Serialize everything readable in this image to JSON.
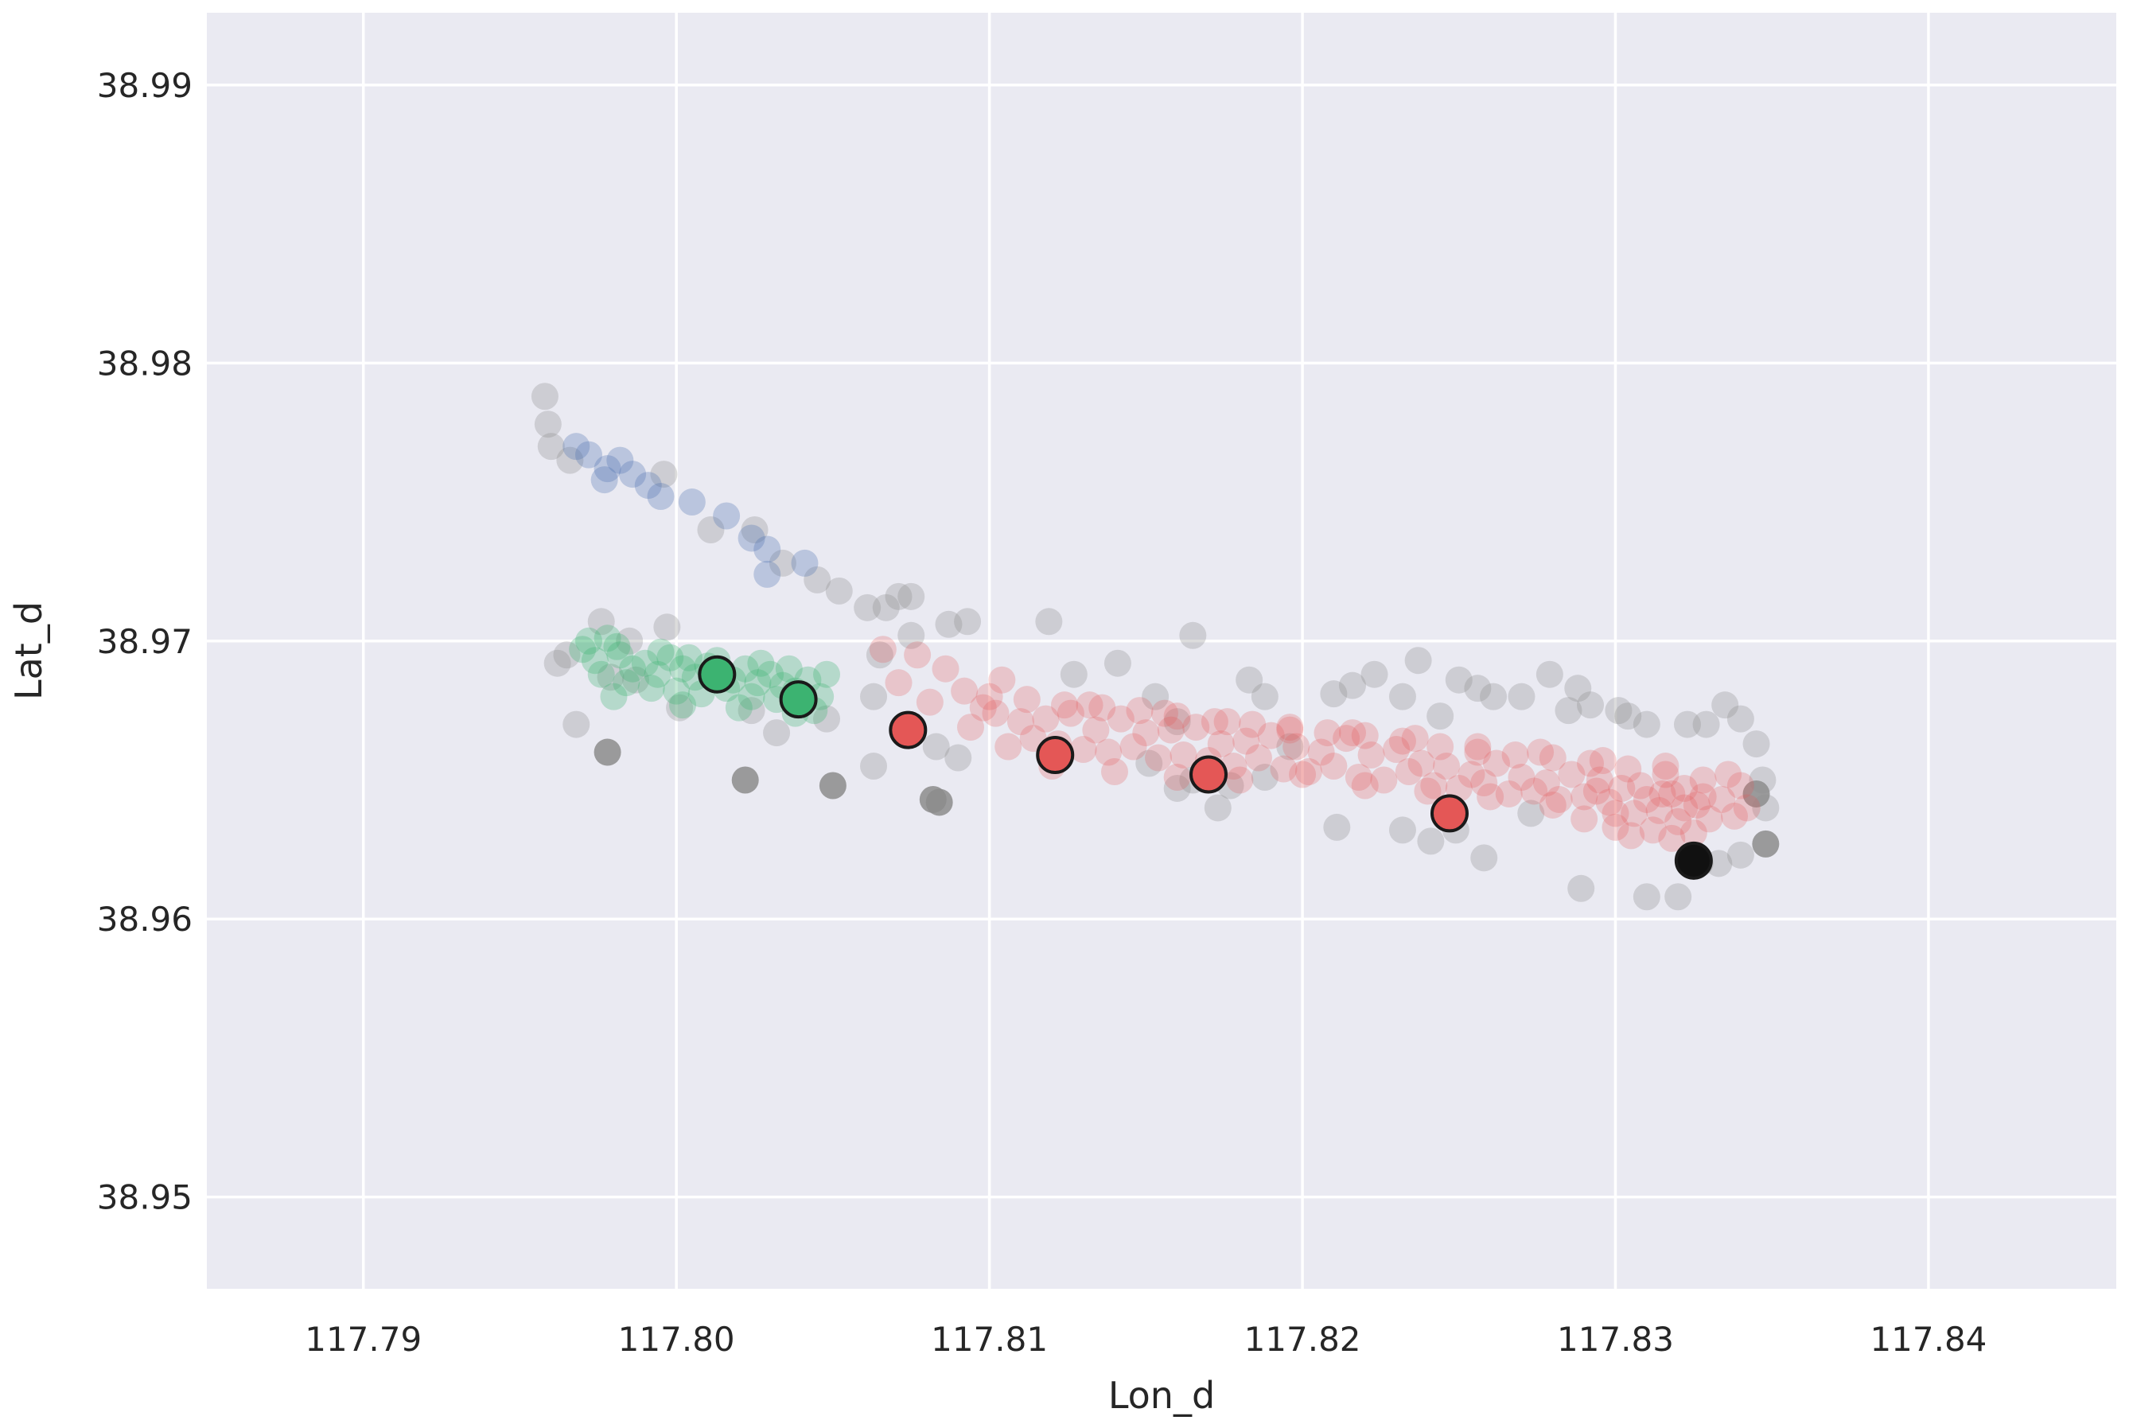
{
  "chart_data": {
    "type": "scatter",
    "xlabel": "Lon_d",
    "ylabel": "Lat_d",
    "xlim": [
      117.785,
      117.846
    ],
    "ylim": [
      38.9467,
      38.9926
    ],
    "xticks": [
      117.79,
      117.8,
      117.81,
      117.82,
      117.83,
      117.84
    ],
    "xtick_labels": [
      "117.79",
      "117.80",
      "117.81",
      "117.82",
      "117.83",
      "117.84"
    ],
    "yticks": [
      38.95,
      38.96,
      38.97,
      38.98,
      38.99
    ],
    "ytick_labels": [
      "38.95",
      "38.96",
      "38.97",
      "38.98",
      "38.99"
    ],
    "grid": true,
    "legend": "none",
    "colors": {
      "background": "#eaeaf2",
      "grid": "#ffffff",
      "blue": "#4c72b0",
      "green": "#3cb371",
      "red": "#e45756",
      "gray": "#8c8c8c",
      "black": "#111111",
      "edge": "#1a1a1a"
    },
    "series": [
      {
        "color": "gray",
        "opacity": 0.3,
        "x": [
          117.7958,
          117.796,
          117.7959,
          117.7966,
          117.7996,
          117.8011,
          117.8025,
          117.8034,
          117.8045,
          117.8052,
          117.8061,
          117.8067,
          117.8071,
          117.8075,
          117.8087,
          117.8093,
          117.8119,
          117.7962,
          117.7965,
          117.7976,
          117.7979,
          117.7985,
          117.7987,
          117.7997,
          117.8001,
          117.8024,
          117.8048,
          117.8063,
          117.8065,
          117.8075,
          117.8127,
          117.8141,
          117.8153,
          117.816,
          117.8165,
          117.8183,
          117.8188,
          117.8196,
          117.821,
          117.8216,
          117.8223,
          117.8232,
          117.8237,
          117.8244,
          117.825,
          117.8256,
          117.8261,
          117.827,
          117.8279,
          117.8285,
          117.8288,
          117.8292,
          117.8301,
          117.8304,
          117.831,
          117.8323,
          117.8329,
          117.8335,
          117.834,
          117.8345,
          117.8347,
          117.8348,
          117.7968,
          117.8032,
          117.8063,
          117.8083,
          117.809,
          117.816,
          117.8173,
          117.8188,
          117.8211,
          117.8232,
          117.8241,
          117.8249,
          117.8258,
          117.8273,
          117.8289,
          117.831,
          117.832,
          117.8327,
          117.8333,
          117.834,
          117.8151,
          117.8165,
          117.8177
        ],
        "y": [
          38.9788,
          38.977,
          38.9778,
          38.9765,
          38.976,
          38.974,
          38.974,
          38.9728,
          38.9722,
          38.9718,
          38.9712,
          38.9712,
          38.9716,
          38.9716,
          38.9706,
          38.9707,
          38.9707,
          38.9692,
          38.9695,
          38.9707,
          38.9687,
          38.97,
          38.9686,
          38.9705,
          38.9676,
          38.9675,
          38.9672,
          38.968,
          38.9695,
          38.9702,
          38.9688,
          38.9692,
          38.968,
          38.9671,
          38.9702,
          38.9686,
          38.968,
          38.9662,
          38.9681,
          38.9684,
          38.9688,
          38.968,
          38.9693,
          38.9673,
          38.9686,
          38.9683,
          38.968,
          38.968,
          38.9688,
          38.9675,
          38.9683,
          38.9677,
          38.9675,
          38.9673,
          38.967,
          38.967,
          38.967,
          38.9677,
          38.9672,
          38.9663,
          38.965,
          38.964,
          38.967,
          38.9667,
          38.9655,
          38.9662,
          38.9658,
          38.9647,
          38.964,
          38.9651,
          38.9633,
          38.9632,
          38.9628,
          38.9632,
          38.9622,
          38.9638,
          38.9611,
          38.9608,
          38.9608,
          38.962,
          38.962,
          38.9623,
          38.9656,
          38.965,
          38.9648
        ]
      },
      {
        "color": "gray",
        "opacity": 0.85,
        "x": [
          117.7978,
          117.8022,
          117.805,
          117.8082,
          117.8084,
          117.8345,
          117.8348
        ],
        "y": [
          38.966,
          38.965,
          38.9648,
          38.9643,
          38.9642,
          38.9645,
          38.9627
        ]
      },
      {
        "color": "blue",
        "opacity": 0.3,
        "x": [
          117.7968,
          117.7972,
          117.7978,
          117.7982,
          117.7986,
          117.7977,
          117.7991,
          117.7995,
          117.8005,
          117.8016,
          117.8024,
          117.8029,
          117.8041,
          117.8029
        ],
        "y": [
          38.977,
          38.9767,
          38.9762,
          38.9765,
          38.976,
          38.9758,
          38.9756,
          38.9752,
          38.975,
          38.9745,
          38.9737,
          38.9733,
          38.9728,
          38.9724
        ]
      },
      {
        "color": "green",
        "opacity": 0.3,
        "x": [
          117.797,
          117.7974,
          117.7978,
          117.7982,
          117.7986,
          117.799,
          117.7994,
          117.7998,
          117.8002,
          117.8006,
          117.801,
          117.8014,
          117.8018,
          117.8022,
          117.8026,
          117.803,
          117.8034,
          117.8038,
          117.8042,
          117.8046,
          117.7976,
          117.7984,
          117.7992,
          117.8,
          117.8008,
          117.8016,
          117.8024,
          117.8032,
          117.804,
          117.8044,
          117.7972,
          117.7981,
          117.7995,
          117.8004,
          117.8013,
          117.8027,
          117.8036,
          117.8048,
          117.798,
          117.8002,
          117.802,
          117.8038
        ],
        "y": [
          38.9697,
          38.9693,
          38.9701,
          38.9695,
          38.969,
          38.9692,
          38.9688,
          38.9694,
          38.969,
          38.9687,
          38.9691,
          38.9689,
          38.9686,
          38.969,
          38.9685,
          38.9688,
          38.9684,
          38.9682,
          38.9686,
          38.968,
          38.9688,
          38.9685,
          38.9683,
          38.9682,
          38.9681,
          38.9683,
          38.968,
          38.9679,
          38.9678,
          38.9675,
          38.97,
          38.9698,
          38.9696,
          38.9694,
          38.9693,
          38.9692,
          38.969,
          38.9688,
          38.968,
          38.9677,
          38.9676,
          38.9674
        ]
      },
      {
        "color": "red",
        "opacity": 0.25,
        "x": [
          117.8066,
          117.8077,
          117.8086,
          117.8071,
          117.8081,
          117.8092,
          117.8098,
          117.8094,
          117.8102,
          117.811,
          117.8118,
          117.8126,
          117.8134,
          117.8142,
          117.815,
          117.8158,
          117.8166,
          117.8174,
          117.8182,
          117.819,
          117.8198,
          117.8206,
          117.8214,
          117.8222,
          117.823,
          117.8238,
          117.8246,
          117.8254,
          117.8262,
          117.827,
          117.8278,
          117.8286,
          117.8294,
          117.8302,
          117.831,
          117.8318,
          117.8326,
          117.8334,
          117.8342,
          117.8106,
          117.8114,
          117.8122,
          117.813,
          117.8138,
          117.8146,
          117.8154,
          117.8162,
          117.817,
          117.8178,
          117.8186,
          117.8194,
          117.8202,
          117.821,
          117.8218,
          117.8226,
          117.8234,
          117.8242,
          117.825,
          117.8258,
          117.8266,
          117.8274,
          117.8282,
          117.829,
          117.8298,
          117.8306,
          117.8314,
          117.8322,
          117.833,
          117.8338,
          117.81,
          117.8112,
          117.8124,
          117.8136,
          117.8148,
          117.816,
          117.8172,
          117.8184,
          117.8196,
          117.8208,
          117.822,
          117.8232,
          117.8244,
          117.8256,
          117.8268,
          117.828,
          117.8292,
          117.8304,
          117.8316,
          117.8328,
          117.834,
          117.812,
          117.814,
          117.816,
          117.818,
          117.82,
          117.822,
          117.824,
          117.826,
          117.828,
          117.83,
          117.832,
          117.8104,
          117.8132,
          117.8156,
          117.8176,
          117.8196,
          117.8216,
          117.8236,
          117.8256,
          117.8276,
          117.8296,
          117.8316,
          117.8336,
          117.83,
          117.8305,
          117.8312,
          117.8318,
          117.8325,
          117.829,
          117.8295,
          117.8308,
          117.8315,
          117.8322,
          117.8328
        ],
        "y": [
          38.9697,
          38.9695,
          38.969,
          38.9685,
          38.9678,
          38.9682,
          38.9676,
          38.9669,
          38.9674,
          38.9671,
          38.9672,
          38.9674,
          38.9668,
          38.9672,
          38.9667,
          38.9668,
          38.9669,
          38.9663,
          38.9664,
          38.9666,
          38.9662,
          38.966,
          38.9665,
          38.9659,
          38.9661,
          38.9656,
          38.9655,
          38.9652,
          38.9656,
          38.9651,
          38.9649,
          38.9652,
          38.9646,
          38.9647,
          38.9643,
          38.9645,
          38.9641,
          38.9643,
          38.964,
          38.9662,
          38.9665,
          38.9663,
          38.9661,
          38.966,
          38.9662,
          38.9658,
          38.9659,
          38.9657,
          38.9655,
          38.9658,
          38.9654,
          38.9653,
          38.9655,
          38.9651,
          38.965,
          38.9653,
          38.9648,
          38.9647,
          38.9649,
          38.9645,
          38.9646,
          38.9643,
          38.9644,
          38.9642,
          38.9638,
          38.9639,
          38.964,
          38.9636,
          38.9637,
          38.968,
          38.9679,
          38.9677,
          38.9676,
          38.9675,
          38.9673,
          38.9671,
          38.967,
          38.9668,
          38.9667,
          38.9666,
          38.9664,
          38.9662,
          38.966,
          38.9659,
          38.9658,
          38.9656,
          38.9654,
          38.9652,
          38.965,
          38.9648,
          38.9655,
          38.9653,
          38.9651,
          38.965,
          38.9652,
          38.9648,
          38.9646,
          38.9644,
          38.9641,
          38.9638,
          38.9635,
          38.9686,
          38.9677,
          38.9674,
          38.9671,
          38.9669,
          38.9667,
          38.9665,
          38.9662,
          38.966,
          38.9657,
          38.9655,
          38.9652,
          38.9633,
          38.963,
          38.9632,
          38.9629,
          38.9631,
          38.9636,
          38.965,
          38.9648,
          38.9645,
          38.9647,
          38.9644
        ]
      }
    ],
    "highlighted_points": [
      {
        "color": "green",
        "x": 117.8013,
        "y": 38.9688
      },
      {
        "color": "green",
        "x": 117.8039,
        "y": 38.9679
      },
      {
        "color": "red",
        "x": 117.8074,
        "y": 38.9668
      },
      {
        "color": "red",
        "x": 117.8121,
        "y": 38.9659
      },
      {
        "color": "red",
        "x": 117.817,
        "y": 38.9652
      },
      {
        "color": "red",
        "x": 117.8247,
        "y": 38.9638
      },
      {
        "color": "black",
        "x": 117.8325,
        "y": 38.9621
      }
    ]
  }
}
